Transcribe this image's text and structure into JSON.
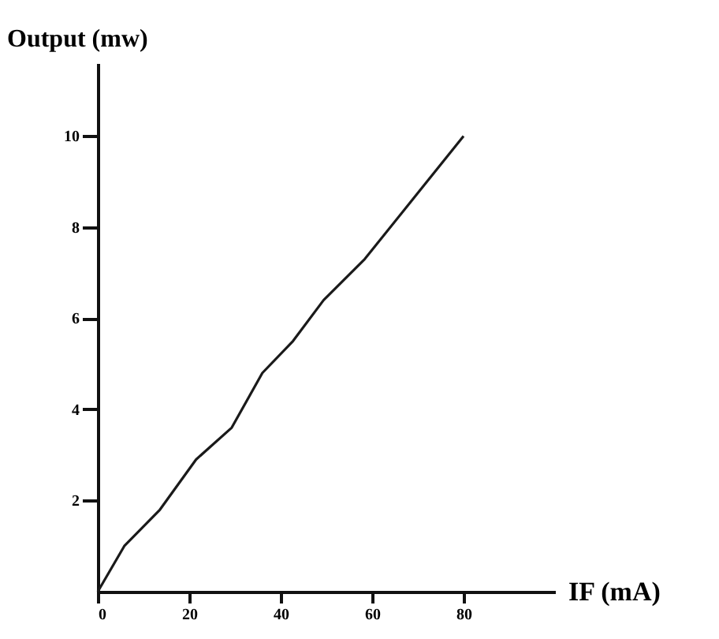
{
  "chart_data": {
    "type": "line",
    "xlabel": "IF (mA)",
    "ylabel": "Output (mw)",
    "x": [
      0,
      5.8,
      13.6,
      21.5,
      29.3,
      36,
      42.7,
      49.4,
      58.4,
      69.6,
      80
    ],
    "series": [
      {
        "color": "#1a1a1a",
        "values": [
          0,
          1.0,
          1.8,
          2.9,
          3.6,
          4.8,
          5.5,
          6.4,
          7.3,
          8.7,
          10
        ]
      }
    ],
    "xlim": [
      0,
      100
    ],
    "ylim": [
      0,
      11.6
    ],
    "xticks": [
      0,
      20,
      40,
      60,
      80
    ],
    "yticks": [
      2,
      4,
      6,
      8,
      10
    ],
    "grid": false
  }
}
